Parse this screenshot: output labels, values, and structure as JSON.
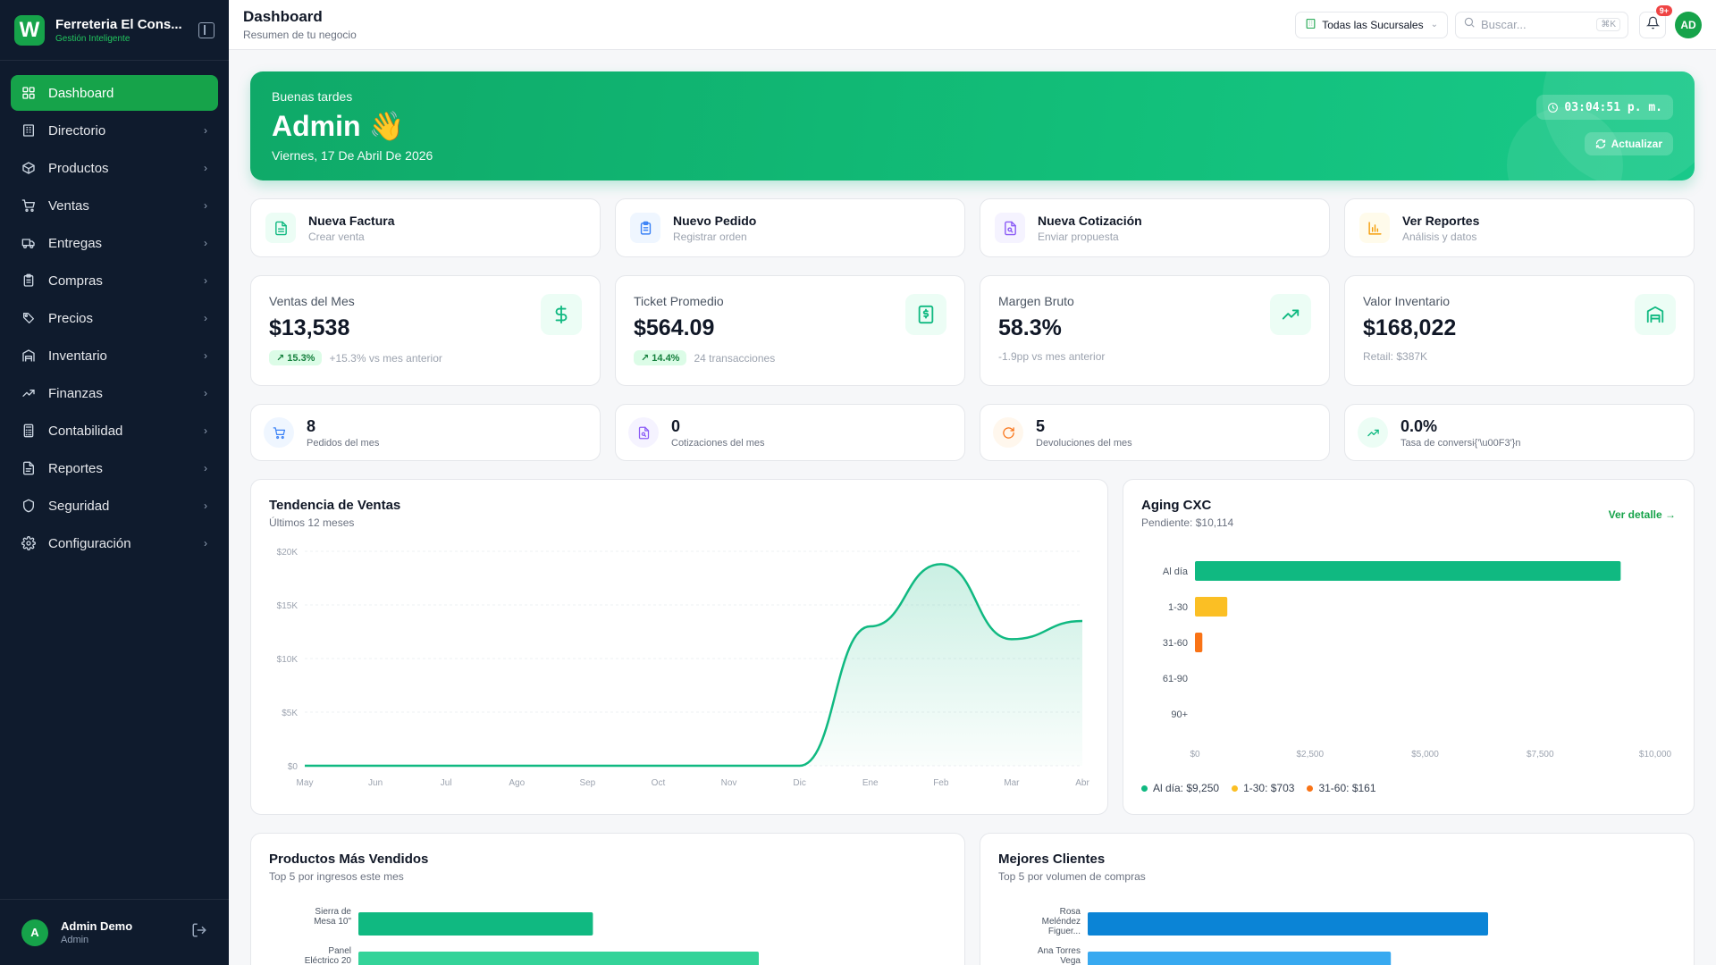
{
  "brand": {
    "name": "Ferreteria El Cons...",
    "tagline": "Gestión Inteligente",
    "logo_letter": "W"
  },
  "sidebar": {
    "items": [
      {
        "label": "Dashboard",
        "icon": "grid-icon",
        "active": true
      },
      {
        "label": "Directorio",
        "icon": "building-icon"
      },
      {
        "label": "Productos",
        "icon": "box-icon"
      },
      {
        "label": "Ventas",
        "icon": "cart-icon"
      },
      {
        "label": "Entregas",
        "icon": "truck-icon"
      },
      {
        "label": "Compras",
        "icon": "clipboard-icon"
      },
      {
        "label": "Precios",
        "icon": "tag-icon"
      },
      {
        "label": "Inventario",
        "icon": "warehouse-icon"
      },
      {
        "label": "Finanzas",
        "icon": "trend-icon"
      },
      {
        "label": "Contabilidad",
        "icon": "calculator-icon"
      },
      {
        "label": "Reportes",
        "icon": "report-icon"
      },
      {
        "label": "Seguridad",
        "icon": "shield-icon"
      },
      {
        "label": "Configuración",
        "icon": "gear-icon"
      }
    ]
  },
  "user": {
    "initial": "A",
    "name": "Admin Demo",
    "role": "Admin"
  },
  "header": {
    "title": "Dashboard",
    "subtitle": "Resumen de tu negocio",
    "branch": "Todas las Sucursales",
    "search_placeholder": "Buscar...",
    "search_kbd": "⌘K",
    "notif_badge": "9+",
    "avatar": "AD"
  },
  "hero": {
    "greeting": "Buenas tardes",
    "name": "Admin 👋",
    "date": "Viernes, 17 De Abril De 2026",
    "clock": "03:04:51 p. m.",
    "refresh": "Actualizar"
  },
  "quick_actions": [
    {
      "title": "Nueva Factura",
      "sub": "Crear venta",
      "color": "#10b981",
      "bg": "#ecfdf5",
      "icon": "invoice-icon"
    },
    {
      "title": "Nuevo Pedido",
      "sub": "Registrar orden",
      "color": "#3b82f6",
      "bg": "#eff6ff",
      "icon": "clipboard-icon"
    },
    {
      "title": "Nueva Cotización",
      "sub": "Enviar propuesta",
      "color": "#8b5cf6",
      "bg": "#f5f3ff",
      "icon": "quote-icon"
    },
    {
      "title": "Ver Reportes",
      "sub": "Análisis y datos",
      "color": "#f59e0b",
      "bg": "#fffbeb",
      "icon": "bar-chart-icon"
    }
  ],
  "kpis": [
    {
      "label": "Ventas del Mes",
      "value": "$13,538",
      "pill": "↗ 15.3%",
      "foot": "+15.3% vs mes anterior",
      "icon": "dollar-icon"
    },
    {
      "label": "Ticket Promedio",
      "value": "$564.09",
      "pill": "↗ 14.4%",
      "foot": "24 transacciones",
      "icon": "receipt-icon"
    },
    {
      "label": "Margen Bruto",
      "value": "58.3%",
      "pill": "",
      "foot": "-1.9pp vs mes anterior",
      "icon": "trend-up-icon"
    },
    {
      "label": "Valor Inventario",
      "value": "$168,022",
      "pill": "",
      "foot": "Retail: $387K",
      "icon": "warehouse-icon"
    }
  ],
  "mini_stats": [
    {
      "value": "8",
      "label": "Pedidos del mes",
      "color": "#3b82f6",
      "bg": "#eff6ff",
      "icon": "cart-icon"
    },
    {
      "value": "0",
      "label": "Cotizaciones del mes",
      "color": "#8b5cf6",
      "bg": "#f5f3ff",
      "icon": "quote-icon"
    },
    {
      "value": "5",
      "label": "Devoluciones del mes",
      "color": "#f97316",
      "bg": "#fff7ed",
      "icon": "refresh-icon"
    },
    {
      "value": "0.0%",
      "label": "Tasa de conversi{'\\u00F3'}n",
      "color": "#10b981",
      "bg": "#ecfdf5",
      "icon": "trend-up-icon"
    }
  ],
  "trend_panel": {
    "title": "Tendencia de Ventas",
    "subtitle": "Últimos 12 meses"
  },
  "aging_panel": {
    "title": "Aging CXC",
    "subtitle": "Pendiente: $10,114",
    "link": "Ver detalle →"
  },
  "top_products_panel": {
    "title": "Productos Más Vendidos",
    "subtitle": "Top 5 por ingresos este mes"
  },
  "top_clients_panel": {
    "title": "Mejores Clientes",
    "subtitle": "Top 5 por volumen de compras"
  },
  "chart_data": [
    {
      "type": "area",
      "title": "Tendencia de Ventas",
      "subtitle": "Últimos 12 meses",
      "categories": [
        "May",
        "Jun",
        "Jul",
        "Ago",
        "Sep",
        "Oct",
        "Nov",
        "Dic",
        "Ene",
        "Feb",
        "Mar",
        "Abr"
      ],
      "values": [
        0,
        0,
        0,
        0,
        0,
        0,
        0,
        0,
        13000,
        18800,
        11800,
        13500
      ],
      "ylim": [
        0,
        20000
      ],
      "yticks": [
        "$0",
        "$5K",
        "$10K",
        "$15K",
        "$20K"
      ],
      "color": "#10b981"
    },
    {
      "type": "bar",
      "orientation": "horizontal",
      "title": "Aging CXC",
      "categories": [
        "Al día",
        "1-30",
        "31-60",
        "61-90",
        "90+"
      ],
      "values": [
        9250,
        703,
        161,
        0,
        0
      ],
      "colors": [
        "#10b981",
        "#fbbf24",
        "#f97316",
        "#ef4444",
        "#b91c1c"
      ],
      "xlim": [
        0,
        10000
      ],
      "xticks": [
        "$0",
        "$2,500",
        "$5,000",
        "$7,500",
        "$10,000"
      ],
      "legend": [
        "Al día: $9,250",
        "1-30: $703",
        "31-60: $161"
      ]
    },
    {
      "type": "bar",
      "orientation": "horizontal",
      "title": "Productos Más Vendidos",
      "categories": [
        "Sierra de Mesa 10\"",
        "Panel Eléctrico 20"
      ],
      "values": [
        0.41,
        0.7
      ],
      "colors": [
        "#10b981",
        "#34d399"
      ]
    },
    {
      "type": "bar",
      "orientation": "horizontal",
      "title": "Mejores Clientes",
      "categories": [
        "Rosa Meléndez Figuer...",
        "Ana Torres Vega"
      ],
      "values": [
        0.7,
        0.53
      ],
      "colors": [
        "#0b84d6",
        "#38a9f0"
      ]
    }
  ]
}
